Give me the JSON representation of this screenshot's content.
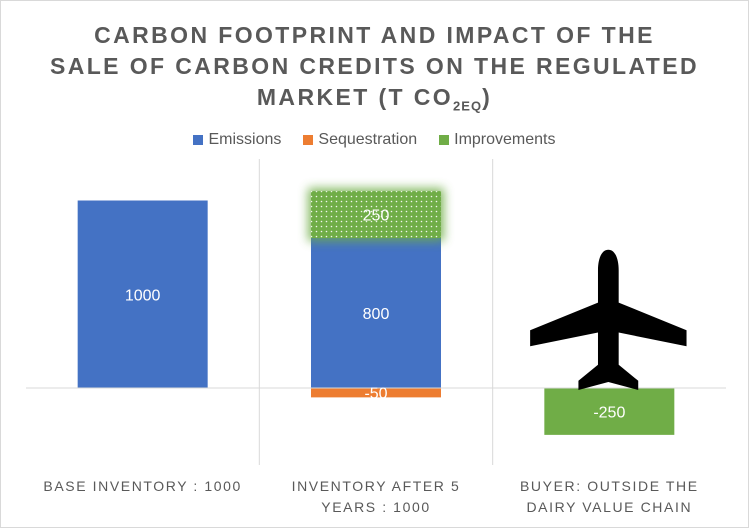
{
  "title": {
    "line1": "CARBON FOOTPRINT AND IMPACT OF THE",
    "line2": "SALE OF CARBON CREDITS ON THE REGULATED",
    "line3_prefix": "MARKET (T CO",
    "line3_sub": "2EQ",
    "line3_suffix": ")"
  },
  "colors": {
    "emissions": "#4472c4",
    "sequestration": "#ed7d31",
    "improvements": "#70ad47",
    "grid": "#d9d9d9",
    "text": "#595959"
  },
  "chart_data": {
    "type": "bar",
    "stacked": true,
    "categories": [
      [
        "BASE INVENTORY : 1000"
      ],
      [
        "INVENTORY AFTER 5",
        "YEARS : 1000"
      ],
      [
        "BUYER: OUTSIDE THE",
        "DAIRY VALUE CHAIN"
      ]
    ],
    "series": [
      {
        "name": "Emissions",
        "values": [
          1000,
          800,
          null
        ],
        "labels": [
          "1000",
          "800",
          ""
        ]
      },
      {
        "name": "Sequestration",
        "values": [
          null,
          -50,
          null
        ],
        "labels": [
          "",
          "-50",
          ""
        ]
      },
      {
        "name": "Improvements",
        "values": [
          null,
          250,
          -250
        ],
        "labels": [
          "",
          "250",
          "-250"
        ]
      }
    ],
    "ylim": [
      -420,
      1080
    ],
    "legend_position": "top",
    "annotations": [
      {
        "category_index": 2,
        "icon": "airplane-icon"
      }
    ]
  }
}
